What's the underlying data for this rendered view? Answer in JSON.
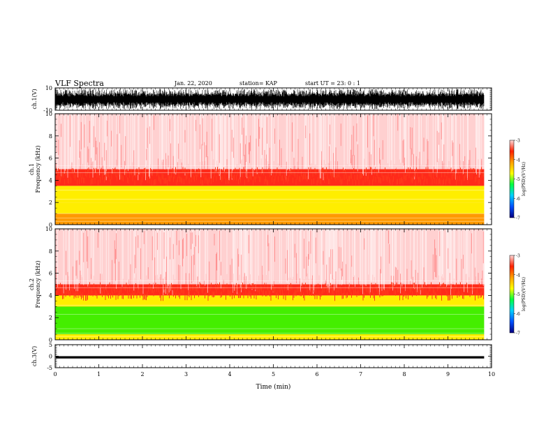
{
  "header": {
    "title": "VLF Spectra",
    "date": "Jan. 22, 2020",
    "station": "station= KAP",
    "start": "start  UT =   23: 0  : 1"
  },
  "colorbar": {
    "label": "log(PSD)(V²/Hz)",
    "colors": [
      "#000080",
      "#0050ff",
      "#00d0ff",
      "#00ff40",
      "#ffff00",
      "#ffa000",
      "#ff2000",
      "#ffd8d8"
    ]
  },
  "chart_data": [
    {
      "type": "line",
      "name": "ch1-waveform",
      "ylabel": "ch.1(V)",
      "ylim": [
        -10,
        10
      ],
      "yticks": [
        "10",
        "-10"
      ],
      "description_of_signal": "dense noisy waveform filling most of range",
      "xlim": [
        0,
        10
      ]
    },
    {
      "type": "heatmap",
      "name": "ch1-spectrogram",
      "ylabel": "ch.1\nFrequency (kHz)",
      "ylim": [
        0,
        10
      ],
      "yticks": [
        "0",
        "2",
        "4",
        "6",
        "8",
        "10"
      ],
      "xlim": [
        0,
        10
      ],
      "data_end_min": 9.83,
      "bands_khz": [
        [
          0,
          1,
          "orange"
        ],
        [
          1,
          2,
          "yellow"
        ],
        [
          2,
          3.5,
          "yellow"
        ],
        [
          3.5,
          5,
          "red"
        ],
        [
          5,
          10,
          "pink"
        ]
      ],
      "colorbar": {
        "range": [
          -7,
          -3
        ],
        "ticks": [
          "-3",
          "-4",
          "-5",
          "-6",
          "-7"
        ]
      }
    },
    {
      "type": "heatmap",
      "name": "ch2-spectrogram",
      "ylabel": "ch.2\nFrequency (kHz)",
      "ylim": [
        0,
        10
      ],
      "yticks": [
        "0",
        "2",
        "4",
        "6",
        "8",
        "10"
      ],
      "xlim": [
        0,
        10
      ],
      "data_end_min": 9.83,
      "bands_khz": [
        [
          0,
          0.5,
          "yellow"
        ],
        [
          0.5,
          3,
          "green"
        ],
        [
          3,
          4,
          "yellow"
        ],
        [
          4,
          5,
          "red"
        ],
        [
          5,
          10,
          "pink"
        ]
      ],
      "colorbar": {
        "range": [
          -7,
          -3
        ],
        "ticks": [
          "-3",
          "-4",
          "-5",
          "-6",
          "-7"
        ]
      }
    },
    {
      "type": "line",
      "name": "ch3-waveform",
      "ylabel": "ch.3(V)",
      "ylim": [
        -5,
        5
      ],
      "yticks": [
        "5",
        "0",
        "-5"
      ],
      "signal_band": [
        -1,
        0
      ],
      "xlim": [
        0,
        10
      ]
    }
  ],
  "xaxis": {
    "label": "Time (min)",
    "ticks": [
      "0",
      "1",
      "2",
      "3",
      "4",
      "5",
      "6",
      "7",
      "8",
      "9",
      "10"
    ]
  }
}
